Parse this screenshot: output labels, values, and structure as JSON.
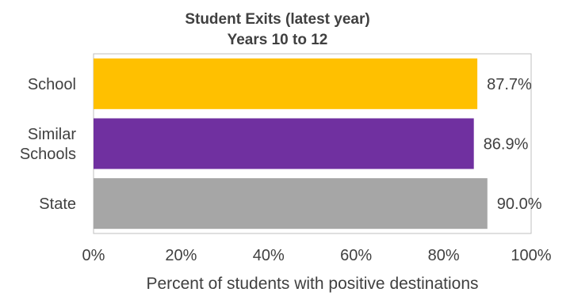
{
  "chart_data": {
    "type": "bar",
    "orientation": "horizontal",
    "title": "Student Exits (latest year)",
    "subtitle": "Years 10 to 12",
    "xlabel": "Percent of students with positive destinations",
    "ylabel": "",
    "xlim": [
      0,
      100
    ],
    "xticks": [
      "0%",
      "20%",
      "40%",
      "60%",
      "80%",
      "100%"
    ],
    "categories": [
      {
        "lines": [
          "School"
        ]
      },
      {
        "lines": [
          "Similar",
          "Schools"
        ]
      },
      {
        "lines": [
          "State"
        ]
      }
    ],
    "values": [
      87.7,
      86.9,
      90.0
    ],
    "value_labels": [
      "87.7%",
      "86.9%",
      "90.0%"
    ],
    "colors": [
      "#FFC000",
      "#7030A0",
      "#A6A6A6"
    ],
    "grid": false,
    "legend": "none"
  }
}
